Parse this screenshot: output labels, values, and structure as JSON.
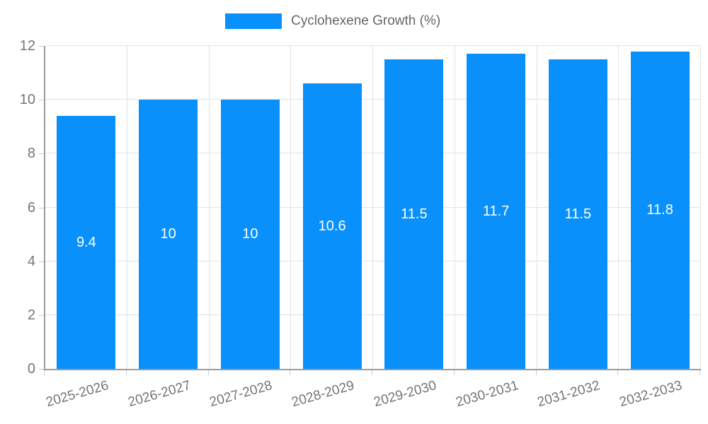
{
  "chart_data": {
    "type": "bar",
    "title": "",
    "categories": [
      "2025-2026",
      "2026-2027",
      "2027-2028",
      "2028-2029",
      "2029-2030",
      "2030-2031",
      "2031-2032",
      "2032-2033"
    ],
    "series": [
      {
        "name": "Cyclohexene Growth (%)",
        "values": [
          9.4,
          10,
          10,
          10.6,
          11.5,
          11.7,
          11.5,
          11.8
        ]
      }
    ],
    "value_labels": [
      "9.4",
      "10",
      "10",
      "10.6",
      "11.5",
      "11.7",
      "11.5",
      "11.8"
    ],
    "xlabel": "",
    "ylabel": "",
    "ylim": [
      0,
      12
    ],
    "yticks": [
      0,
      2,
      4,
      6,
      8,
      10,
      12
    ],
    "grid": true,
    "legend_position": "top-center"
  },
  "legend": {
    "label": "Cyclohexene Growth (%)"
  },
  "colors": {
    "bar": "#0a90fa",
    "grid": "#e3e3e3",
    "axis_line": "#9b9b9b",
    "tick": "#cccccc",
    "axis_text": "#757575",
    "legend_text": "#666666",
    "value_text": "#ffffff",
    "background": "#ffffff"
  }
}
